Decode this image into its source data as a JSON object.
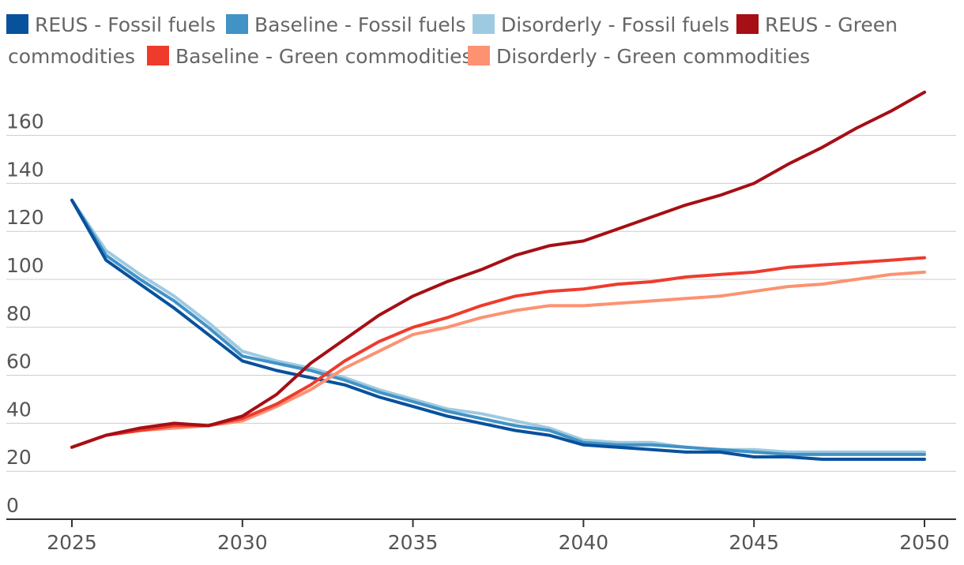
{
  "chart_data": {
    "type": "line",
    "title": "",
    "xlabel": "",
    "ylabel": "",
    "xlim": [
      2025,
      2050
    ],
    "ylim": [
      0,
      180
    ],
    "x_ticks": [
      "2025",
      "2030",
      "2035",
      "2040",
      "2045",
      "2050"
    ],
    "y_ticks": [
      "0",
      "20",
      "40",
      "60",
      "80",
      "100",
      "120",
      "140",
      "160"
    ],
    "x": [
      2025,
      2026,
      2027,
      2028,
      2029,
      2030,
      2031,
      2032,
      2033,
      2034,
      2035,
      2036,
      2037,
      2038,
      2039,
      2040,
      2041,
      2042,
      2043,
      2044,
      2045,
      2046,
      2047,
      2048,
      2049,
      2050
    ],
    "series": [
      {
        "name": "Disorderly - Fossil fuels",
        "color": "#9ecae1",
        "values": [
          133,
          112,
          102,
          93,
          82,
          70,
          66,
          63,
          59,
          54,
          50,
          46,
          44,
          41,
          38,
          33,
          32,
          32,
          30,
          29,
          29,
          28,
          28,
          28,
          28,
          28
        ]
      },
      {
        "name": "Baseline - Fossil fuels",
        "color": "#4292c6",
        "values": [
          133,
          110,
          100,
          91,
          80,
          68,
          65,
          62,
          58,
          53,
          49,
          45,
          42,
          39,
          37,
          32,
          31,
          31,
          30,
          29,
          28,
          27,
          27,
          27,
          27,
          27
        ]
      },
      {
        "name": "REUS - Fossil fuels",
        "color": "#08519c",
        "values": [
          133,
          108,
          98,
          88,
          77,
          66,
          62,
          59,
          56,
          51,
          47,
          43,
          40,
          37,
          35,
          31,
          30,
          29,
          28,
          28,
          26,
          26,
          25,
          25,
          25,
          25
        ]
      },
      {
        "name": "Disorderly - Green commodities",
        "color": "#fc9272",
        "values": [
          30,
          35,
          37,
          38,
          39,
          41,
          47,
          54,
          63,
          70,
          77,
          80,
          84,
          87,
          89,
          89,
          90,
          91,
          92,
          93,
          95,
          97,
          98,
          100,
          102,
          103
        ]
      },
      {
        "name": "Baseline - Green commodities",
        "color": "#ef3b2c",
        "values": [
          30,
          35,
          37,
          39,
          39,
          42,
          48,
          56,
          66,
          74,
          80,
          84,
          89,
          93,
          95,
          96,
          98,
          99,
          101,
          102,
          103,
          105,
          106,
          107,
          108,
          109
        ]
      },
      {
        "name": "REUS - Green commodities",
        "color": "#a50f15",
        "values": [
          30,
          35,
          38,
          40,
          39,
          43,
          52,
          65,
          75,
          85,
          93,
          99,
          104,
          110,
          114,
          116,
          121,
          126,
          131,
          135,
          140,
          148,
          155,
          163,
          170,
          178
        ]
      }
    ],
    "legend": [
      {
        "label": "REUS - Fossil fuels",
        "color": "#08519c"
      },
      {
        "label": "Baseline - Fossil fuels",
        "color": "#4292c6"
      },
      {
        "label": "Disorderly - Fossil fuels",
        "color": "#9ecae1"
      },
      {
        "label": "REUS - Green",
        "label_wrap": "commodities",
        "color": "#a50f15"
      },
      {
        "label": "Baseline - Green commodities",
        "color": "#ef3b2c"
      },
      {
        "label": "Disorderly - Green commodities",
        "color": "#fc9272"
      }
    ],
    "legend_position": "top"
  }
}
